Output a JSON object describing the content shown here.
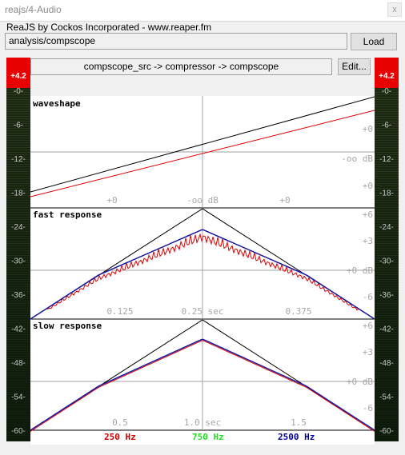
{
  "window": {
    "title": "reajs/4-Audio",
    "close_glyph": "x"
  },
  "header": {
    "label": "ReaJS by Cockos Incorporated - www.reaper.fm"
  },
  "effect": {
    "path": "analysis/compscope",
    "load_label": "Load"
  },
  "chain": {
    "text": "compscope_src -> compressor -> compscope",
    "edit_label": "Edit..."
  },
  "meters": {
    "peak_label": "+4.2",
    "scale": [
      "-0-",
      "-6-",
      "-12-",
      "-18-",
      "-24-",
      "-30-",
      "-36-",
      "-42-",
      "-48-",
      "-54-",
      "-60-"
    ]
  },
  "panels": {
    "waveshape": {
      "title": "waveshape",
      "x_labels": [
        "+0",
        "-oo dB",
        "+0"
      ],
      "y_labels": [
        "+0",
        "-oo dB",
        "+0"
      ]
    },
    "fast": {
      "title": "fast response",
      "x_labels": [
        "0.125",
        "0.25 sec",
        "0.375"
      ],
      "y_labels": [
        "+6",
        "+3",
        "+0 dB",
        "-6"
      ]
    },
    "slow": {
      "title": "slow response",
      "x_labels": [
        "0.5",
        "1.0 sec",
        "1.5"
      ],
      "y_labels": [
        "+6",
        "+3",
        "+0 dB",
        "-6"
      ]
    }
  },
  "legend": [
    {
      "label": "250 Hz",
      "color": "#cc0000"
    },
    {
      "label": "750 Hz",
      "color": "#22dd22"
    },
    {
      "label": "2500 Hz",
      "color": "#000099"
    }
  ],
  "colors": {
    "curve_red": "#e00000",
    "curve_blue": "#1a1aa0",
    "reference": "#000000",
    "grid": "#a0a0a0",
    "meter_label": "#c8c8c8",
    "peak_bg": "#e80000"
  }
}
